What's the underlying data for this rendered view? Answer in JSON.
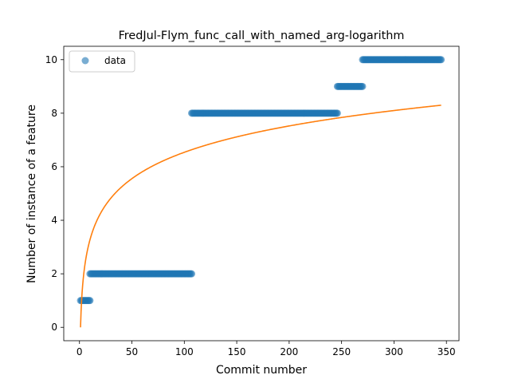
{
  "chart_data": {
    "type": "scatter",
    "title": "FredJul-Flym_func_call_with_named_arg-logarithm",
    "xlabel": "Commit number",
    "ylabel": "Number of instance of a feature",
    "xlim": [
      -15,
      362
    ],
    "ylim": [
      -0.5,
      10.5
    ],
    "xticks": [
      0,
      50,
      100,
      150,
      200,
      250,
      300,
      350
    ],
    "yticks": [
      0,
      2,
      4,
      6,
      8,
      10
    ],
    "grid": false,
    "legend": {
      "position": "top-left",
      "entries": [
        "data"
      ]
    },
    "colors": {
      "data": "#1f77b4",
      "fit": "#ff7f0e"
    },
    "series": [
      {
        "name": "data",
        "kind": "scatter",
        "segments": [
          {
            "x_start": 1,
            "x_end": 10,
            "y": 1
          },
          {
            "x_start": 10,
            "x_end": 107,
            "y": 2
          },
          {
            "x_start": 107,
            "x_end": 246,
            "y": 8
          },
          {
            "x_start": 246,
            "x_end": 270,
            "y": 9
          },
          {
            "x_start": 270,
            "x_end": 345,
            "y": 10
          }
        ]
      },
      {
        "kind": "line",
        "fit": {
          "form": "a*ln(x)",
          "a": 1.42,
          "x_start": 1,
          "x_end": 345
        }
      }
    ]
  }
}
